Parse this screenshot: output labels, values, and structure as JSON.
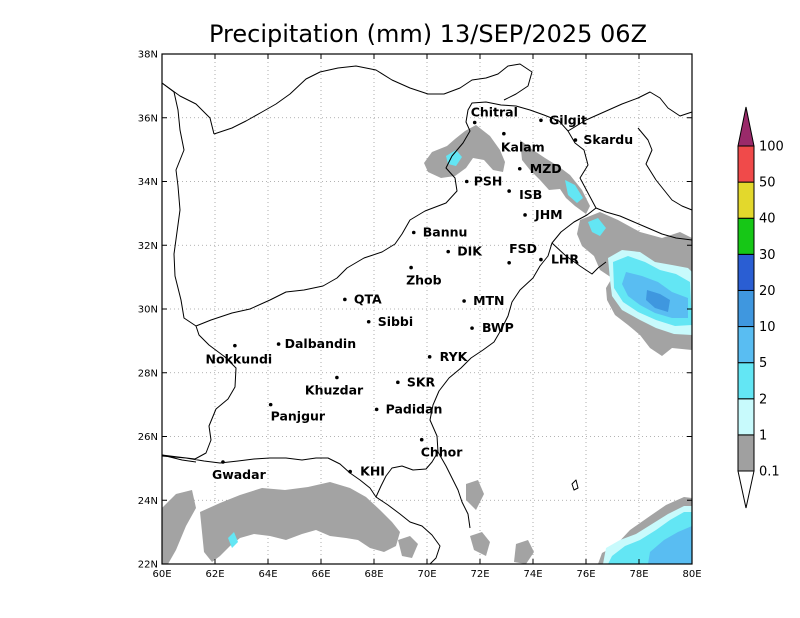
{
  "map": {
    "title": "Precipitation (mm) 13/SEP/2025 06Z",
    "lon_labels": [
      "60E",
      "62E",
      "64E",
      "66E",
      "68E",
      "70E",
      "72E",
      "74E",
      "76E",
      "78E",
      "80E"
    ],
    "lat_labels": [
      "22N",
      "24N",
      "26N",
      "28N",
      "30N",
      "32N",
      "34N",
      "36N",
      "38N"
    ],
    "extent": {
      "lon": [
        60,
        80
      ],
      "lat": [
        22,
        38
      ]
    }
  },
  "cities": [
    {
      "name": "Chitral",
      "lon": 71.8,
      "lat": 35.85
    },
    {
      "name": "Gilgit",
      "lon": 74.3,
      "lat": 35.92
    },
    {
      "name": "Kalam",
      "lon": 72.9,
      "lat": 35.5
    },
    {
      "name": "Skardu",
      "lon": 75.6,
      "lat": 35.3
    },
    {
      "name": "MZD",
      "lon": 73.5,
      "lat": 34.4
    },
    {
      "name": "PSH",
      "lon": 71.5,
      "lat": 34.0
    },
    {
      "name": "ISB",
      "lon": 73.1,
      "lat": 33.7
    },
    {
      "name": "JHM",
      "lon": 73.7,
      "lat": 32.95
    },
    {
      "name": "Bannu",
      "lon": 69.5,
      "lat": 32.4
    },
    {
      "name": "DIK",
      "lon": 70.8,
      "lat": 31.8
    },
    {
      "name": "FSD",
      "lon": 73.1,
      "lat": 31.45
    },
    {
      "name": "LHR",
      "lon": 74.3,
      "lat": 31.55
    },
    {
      "name": "Zhob",
      "lon": 69.4,
      "lat": 31.3
    },
    {
      "name": "QTA",
      "lon": 66.9,
      "lat": 30.3
    },
    {
      "name": "MTN",
      "lon": 71.4,
      "lat": 30.25
    },
    {
      "name": "Sibbi",
      "lon": 67.8,
      "lat": 29.6
    },
    {
      "name": "BWP",
      "lon": 71.7,
      "lat": 29.4
    },
    {
      "name": "Nokkundi",
      "lon": 62.75,
      "lat": 28.85
    },
    {
      "name": "Dalbandin",
      "lon": 64.4,
      "lat": 28.9
    },
    {
      "name": "RYK",
      "lon": 70.1,
      "lat": 28.5
    },
    {
      "name": "Khuzdar",
      "lon": 66.6,
      "lat": 27.85
    },
    {
      "name": "SKR",
      "lon": 68.9,
      "lat": 27.7
    },
    {
      "name": "Panjgur",
      "lon": 64.1,
      "lat": 27.0
    },
    {
      "name": "Padidan",
      "lon": 68.1,
      "lat": 26.85
    },
    {
      "name": "Chhor",
      "lon": 69.8,
      "lat": 25.9
    },
    {
      "name": "KHI",
      "lon": 67.1,
      "lat": 24.9
    },
    {
      "name": "Gwadar",
      "lon": 62.3,
      "lat": 25.2
    }
  ],
  "legend": {
    "levels": [
      "0.1",
      "1",
      "2",
      "5",
      "10",
      "20",
      "30",
      "40",
      "50",
      "100"
    ],
    "colors": [
      "#a0a0a0",
      "#c8fafc",
      "#63e6f4",
      "#59bdf2",
      "#3f97df",
      "#2a5ed3",
      "#16c716",
      "#e3d82c",
      "#f04a4a",
      "#9a2a6a"
    ]
  }
}
